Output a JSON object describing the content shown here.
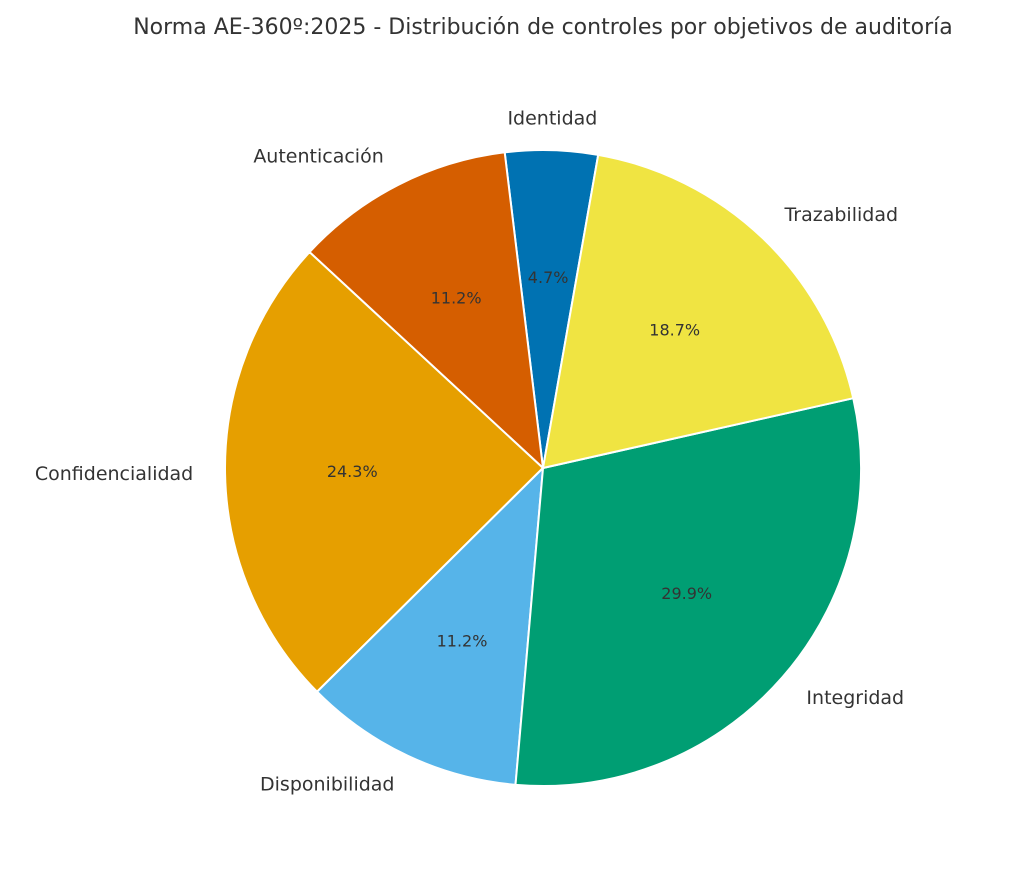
{
  "chart_data": {
    "type": "pie",
    "title": "Norma AE-360º:2025 - Distribución de controles por objetivos de auditoría",
    "start_angle_deg": 80,
    "direction": "counterclockwise",
    "slices": [
      {
        "label": "Identidad",
        "value": 4.7,
        "pct_label": "4.7%",
        "color": "#0072B2"
      },
      {
        "label": "Autenticación",
        "value": 11.2,
        "pct_label": "11.2%",
        "color": "#D55E00"
      },
      {
        "label": "Confidencialidad",
        "value": 24.3,
        "pct_label": "24.3%",
        "color": "#E69F00"
      },
      {
        "label": "Disponibilidad",
        "value": 11.2,
        "pct_label": "11.2%",
        "color": "#56B4E9"
      },
      {
        "label": "Integridad",
        "value": 29.9,
        "pct_label": "29.9%",
        "color": "#009E73"
      },
      {
        "label": "Trazabilidad",
        "value": 18.7,
        "pct_label": "18.7%",
        "color": "#F0E442"
      }
    ]
  }
}
